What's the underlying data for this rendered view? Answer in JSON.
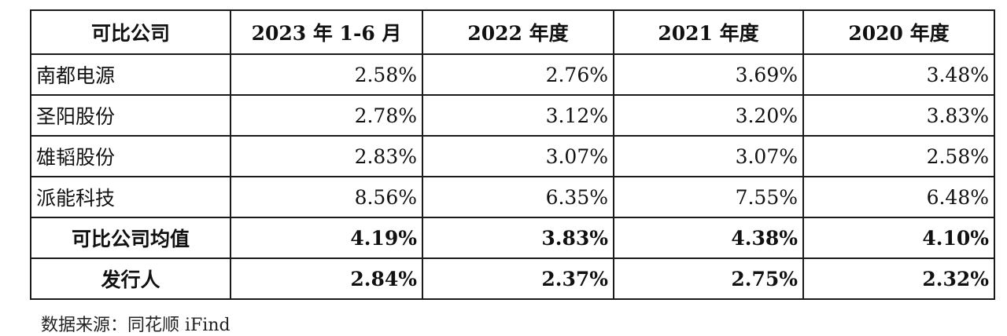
{
  "table": {
    "headers": [
      "可比公司",
      "2023 年 1-6 月",
      "2022 年度",
      "2021 年度",
      "2020 年度"
    ],
    "rows": [
      {
        "name": "南都电源",
        "values": [
          "2.58%",
          "2.76%",
          "3.69%",
          "3.48%"
        ]
      },
      {
        "name": "圣阳股份",
        "values": [
          "2.78%",
          "3.12%",
          "3.20%",
          "3.83%"
        ]
      },
      {
        "name": "雄韬股份",
        "values": [
          "2.83%",
          "3.07%",
          "3.07%",
          "2.58%"
        ]
      },
      {
        "name": "派能科技",
        "values": [
          "8.56%",
          "6.35%",
          "7.55%",
          "6.48%"
        ]
      },
      {
        "name": "可比公司均值",
        "values": [
          "4.19%",
          "3.83%",
          "4.38%",
          "4.10%"
        ]
      },
      {
        "name": "发行人",
        "values": [
          "2.84%",
          "2.37%",
          "2.75%",
          "2.32%"
        ]
      }
    ]
  },
  "source_note": "数据来源：同花顺 iFind"
}
